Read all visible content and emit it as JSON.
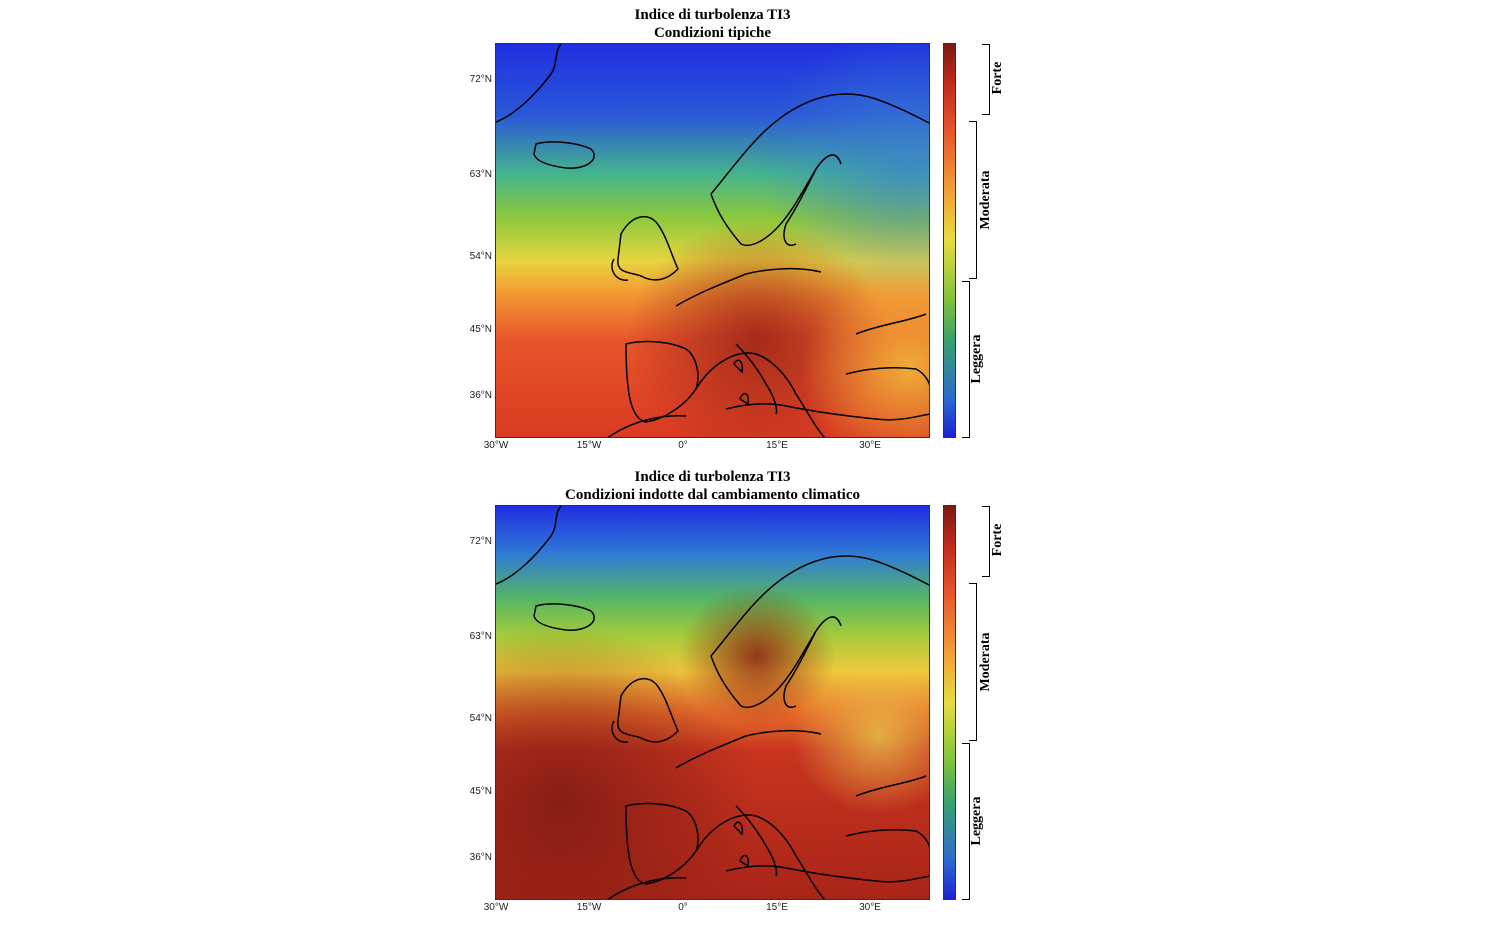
{
  "panels": [
    {
      "title_line1": "Indice di turbolenza TI3",
      "title_line2": "Condizioni tipiche"
    },
    {
      "title_line1": "Indice di turbolenza TI3",
      "title_line2": "Condizioni indotte dal cambiamento climatico"
    }
  ],
  "y_ticks": [
    "72°N",
    "63°N",
    "54°N",
    "45°N",
    "36°N"
  ],
  "x_ticks": [
    "30°W",
    "15°W",
    "0°",
    "15°E",
    "30°E"
  ],
  "colorbar_categories": [
    "Forte",
    "Moderata",
    "Leggera"
  ],
  "colors": {
    "low": "#1f1fd6",
    "mid_low": "#3aa36a",
    "mid": "#e6dd3c",
    "mid_high": "#e8542a",
    "high": "#7a1a12",
    "coastline": "#000000"
  }
}
